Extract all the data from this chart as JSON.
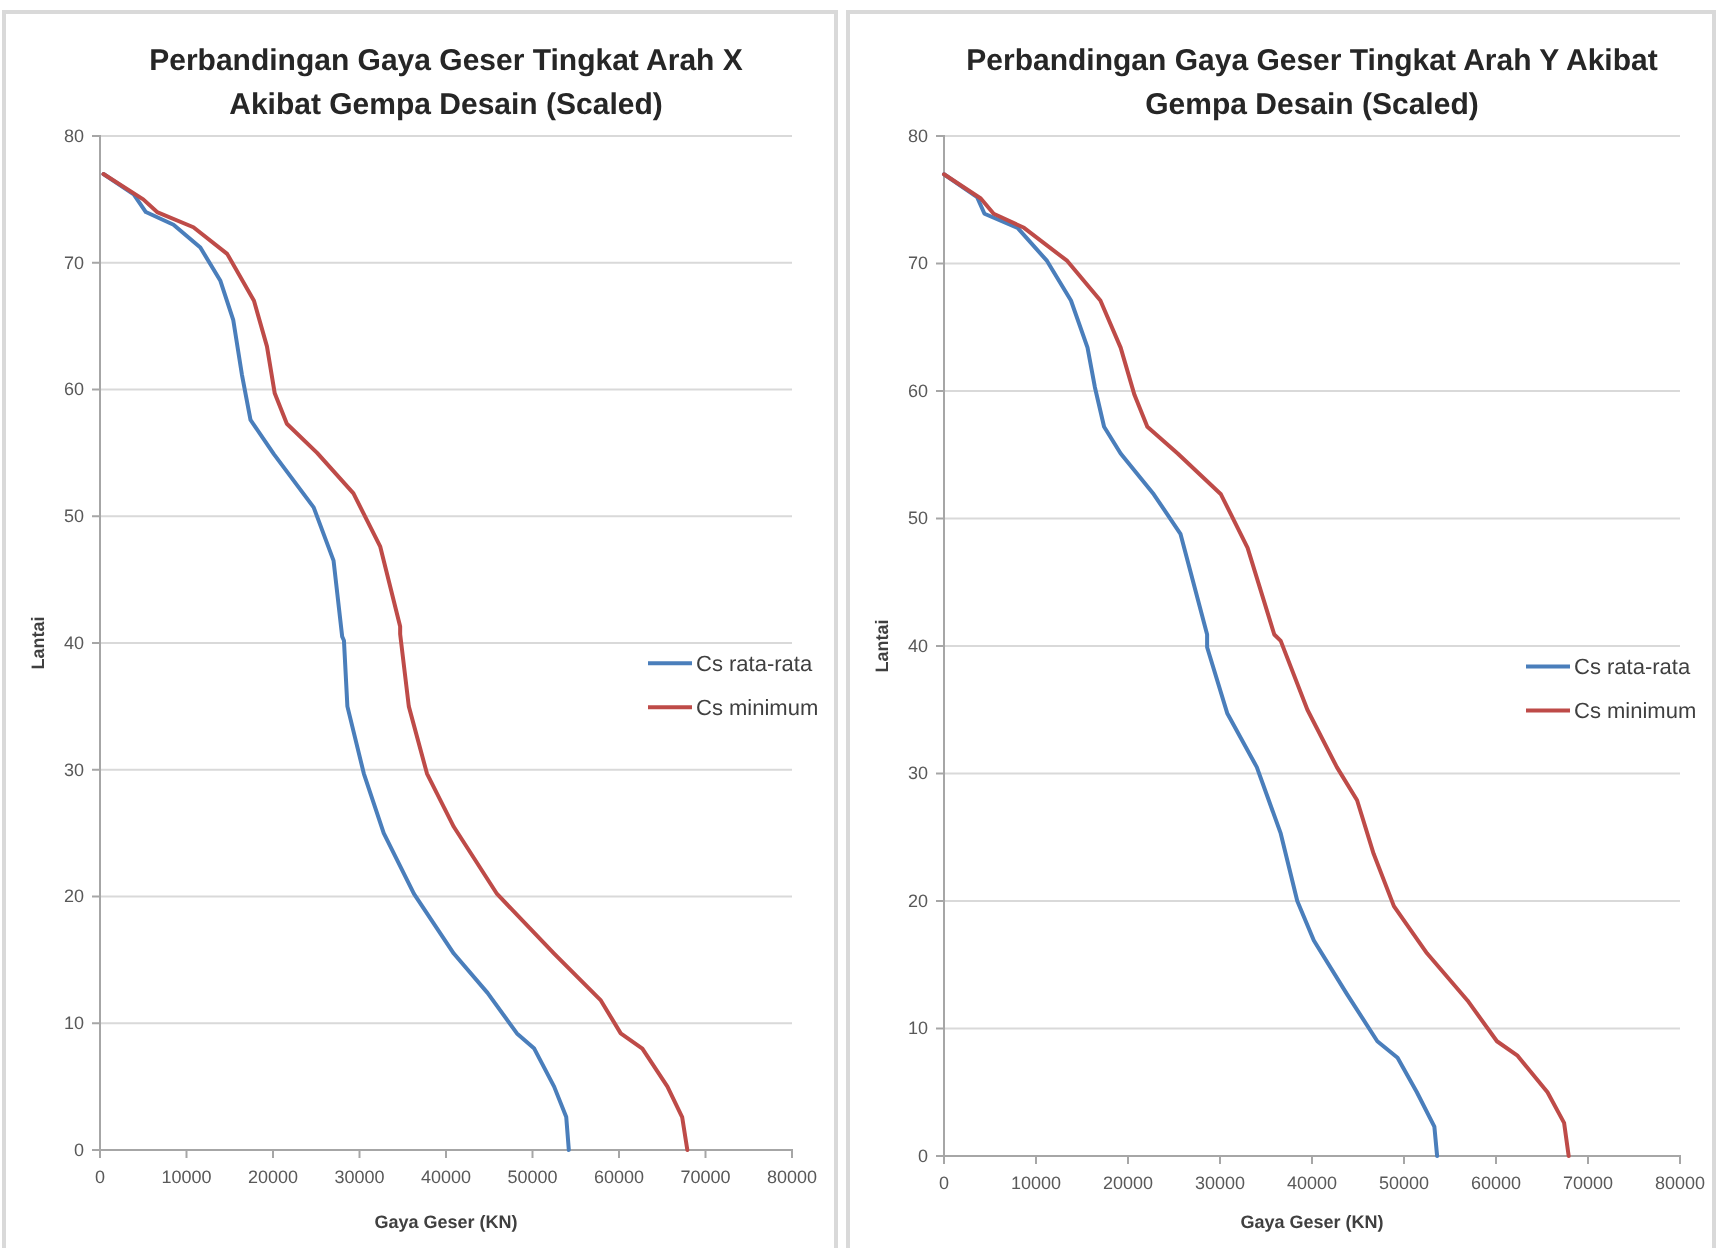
{
  "chart_data": [
    {
      "type": "line",
      "title": "Perbandingan Gaya Geser Tingkat Arah X Akibat Gempa Desain (Scaled)",
      "xlabel": "Gaya Geser (KN)",
      "ylabel": "Lantai",
      "xlim": [
        0,
        80000
      ],
      "xticks": [
        0,
        10000,
        20000,
        30000,
        40000,
        50000,
        60000,
        70000,
        80000
      ],
      "ylim": [
        0,
        80
      ],
      "yticks": [
        0,
        10,
        20,
        30,
        40,
        50,
        60,
        70,
        80
      ],
      "grid": "y",
      "legend": "right",
      "marker": "none",
      "line_style": "solid",
      "series": [
        {
          "name": "Cs rata-rata",
          "color": "#4a7ebb",
          "x": [
            400,
            3900,
            5300,
            8500,
            11600,
            13900,
            15400,
            16400,
            17400,
            20100,
            24700,
            27000,
            28000,
            28200,
            28600,
            30500,
            32800,
            36300,
            40900,
            44800,
            48200,
            50200,
            52500,
            53900,
            54200
          ],
          "values": [
            77,
            75.4,
            74,
            73,
            71.2,
            68.6,
            65.5,
            61.2,
            57.6,
            54.9,
            50.7,
            46.5,
            40.5,
            40.2,
            35,
            29.7,
            25,
            20.2,
            15.5,
            12.4,
            9.2,
            8,
            5,
            2.6,
            0
          ]
        },
        {
          "name": "Cs minimum",
          "color": "#be4b48",
          "x": [
            400,
            5000,
            6600,
            10800,
            14700,
            17800,
            19300,
            20200,
            21600,
            25100,
            29300,
            32400,
            34700,
            34700,
            35700,
            37800,
            40900,
            45900,
            52500,
            57900,
            60200,
            62700,
            65600,
            67300,
            67900
          ],
          "values": [
            77,
            75,
            74,
            72.8,
            70.7,
            67,
            63.4,
            59.7,
            57.3,
            55,
            51.8,
            47.6,
            41.3,
            40.7,
            35,
            29.7,
            25.5,
            20.2,
            15.5,
            11.8,
            9.2,
            8,
            5,
            2.6,
            0
          ]
        }
      ]
    },
    {
      "type": "line",
      "title": "Perbandingan Gaya Geser Tingkat Arah Y Akibat Gempa Desain (Scaled)",
      "xlabel": "Gaya Geser (KN)",
      "ylabel": "Lantai",
      "xlim": [
        0,
        80000
      ],
      "xticks": [
        0,
        10000,
        20000,
        30000,
        40000,
        50000,
        60000,
        70000,
        80000
      ],
      "ylim": [
        0,
        80
      ],
      "yticks": [
        0,
        10,
        20,
        30,
        40,
        50,
        60,
        70,
        80
      ],
      "grid": "y",
      "legend": "right",
      "marker": "none",
      "line_style": "solid",
      "series": [
        {
          "name": "Cs rata-rata",
          "color": "#4a7ebb",
          "x": [
            0,
            3600,
            4400,
            8000,
            11200,
            13800,
            15600,
            16400,
            17400,
            19200,
            22800,
            25700,
            28600,
            28600,
            30800,
            34000,
            36600,
            38400,
            40200,
            43800,
            47100,
            49300,
            51400,
            53300,
            53600
          ],
          "values": [
            77,
            75.2,
            73.9,
            72.8,
            70.2,
            67.1,
            63.4,
            60.3,
            57.2,
            55.1,
            51.9,
            48.8,
            40.9,
            39.9,
            34.7,
            30.5,
            25.3,
            20,
            16.9,
            12.7,
            9,
            7.7,
            5,
            2.3,
            0
          ]
        },
        {
          "name": "Cs minimum",
          "color": "#be4b48",
          "x": [
            0,
            4000,
            5400,
            8700,
            13400,
            17000,
            19200,
            20700,
            22100,
            25400,
            30100,
            33000,
            35900,
            36600,
            39500,
            42700,
            44900,
            46700,
            48900,
            52500,
            56900,
            60100,
            62300,
            65600,
            67400,
            67900
          ],
          "values": [
            77,
            75.1,
            73.9,
            72.8,
            70.2,
            67.1,
            63.4,
            59.7,
            57.2,
            55.1,
            51.9,
            47.7,
            40.9,
            40.4,
            35,
            30.5,
            27.9,
            23.7,
            19.6,
            15.9,
            12.2,
            9,
            7.9,
            5,
            2.6,
            0
          ]
        }
      ]
    }
  ]
}
